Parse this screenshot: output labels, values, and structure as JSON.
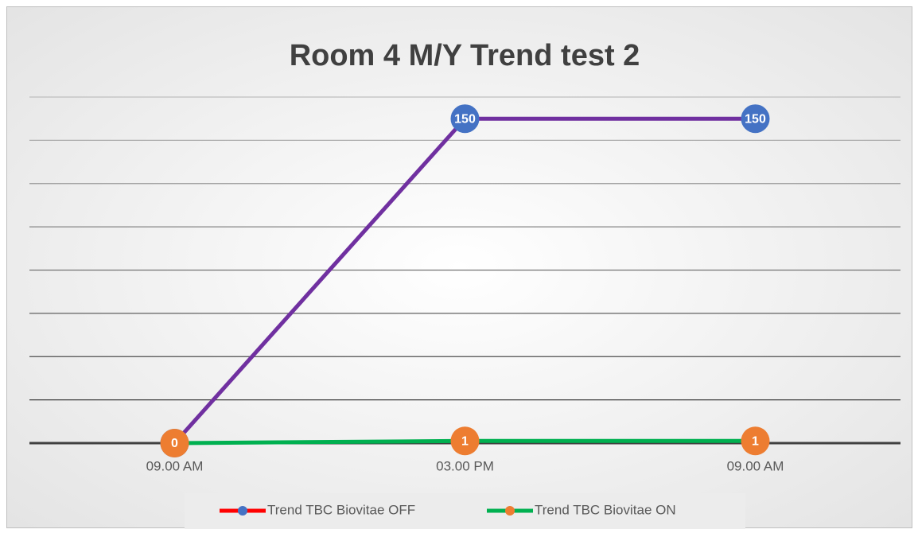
{
  "chart_data": {
    "type": "line",
    "title": "Room 4 M/Y Trend test 2",
    "categories": [
      "09.00 AM",
      "03.00 PM",
      "09.00 AM"
    ],
    "series": [
      {
        "name": "Trend  TBC Biovitae OFF",
        "color": "#7030a0",
        "marker_color": "#4472c4",
        "legend_color": "#ff0000",
        "values": [
          0,
          150,
          150
        ]
      },
      {
        "name": "Trend  TBC Biovitae ON",
        "color": "#00b050",
        "marker_color": "#ed7d31",
        "legend_color": "#00b050",
        "values": [
          0,
          1,
          1
        ]
      }
    ],
    "ylim": [
      0,
      160
    ],
    "yticks": [
      0,
      20,
      40,
      60,
      80,
      100,
      120,
      140,
      160
    ],
    "grid": true,
    "legend": "bottom"
  }
}
